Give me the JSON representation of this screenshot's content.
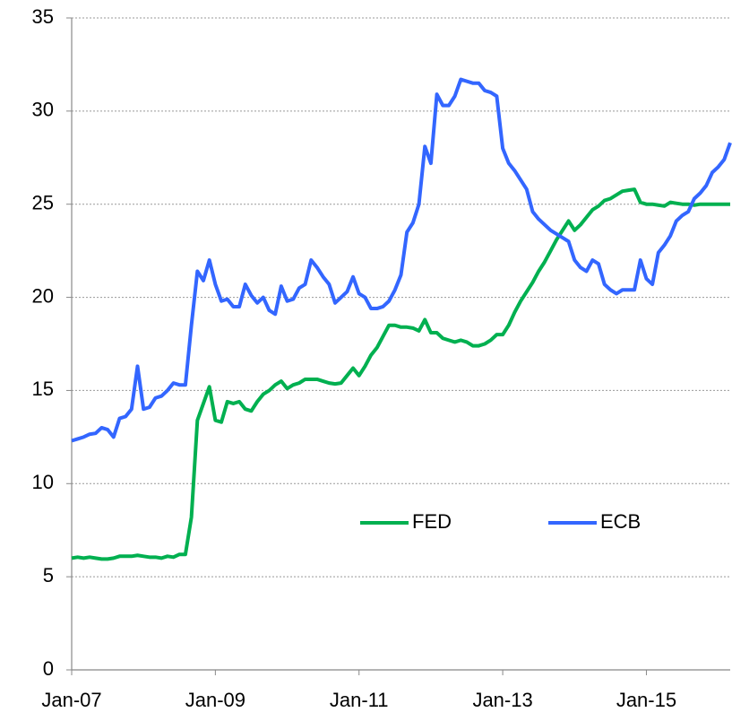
{
  "chart_data": {
    "type": "line",
    "categories": [
      "Jan-07",
      null,
      null,
      null,
      null,
      null,
      null,
      null,
      null,
      null,
      null,
      null,
      null,
      null,
      null,
      null,
      null,
      null,
      null,
      null,
      null,
      null,
      null,
      null,
      "Jan-09",
      null,
      null,
      null,
      null,
      null,
      null,
      null,
      null,
      null,
      null,
      null,
      null,
      null,
      null,
      null,
      null,
      null,
      null,
      null,
      null,
      null,
      null,
      null,
      "Jan-11",
      null,
      null,
      null,
      null,
      null,
      null,
      null,
      null,
      null,
      null,
      null,
      null,
      null,
      null,
      null,
      null,
      null,
      null,
      null,
      null,
      null,
      null,
      null,
      "Jan-13",
      null,
      null,
      null,
      null,
      null,
      null,
      null,
      null,
      null,
      null,
      null,
      null,
      null,
      null,
      null,
      null,
      null,
      null,
      null,
      null,
      null,
      null,
      null,
      "Jan-15",
      null,
      null,
      null,
      null,
      null,
      null,
      null,
      null,
      null,
      null,
      null,
      null,
      null,
      null
    ],
    "series": [
      {
        "name": "FED",
        "color": "#00b050",
        "values": [
          6.0,
          6.05,
          6.0,
          6.05,
          6.0,
          5.95,
          5.95,
          6.0,
          6.1,
          6.1,
          6.1,
          6.15,
          6.1,
          6.05,
          6.05,
          6.0,
          6.1,
          6.05,
          6.2,
          6.2,
          8.2,
          13.4,
          14.3,
          15.2,
          13.4,
          13.3,
          14.4,
          14.3,
          14.4,
          14.0,
          13.9,
          14.4,
          14.8,
          15.0,
          15.3,
          15.5,
          15.1,
          15.3,
          15.4,
          15.6,
          15.6,
          15.6,
          15.5,
          15.4,
          15.35,
          15.4,
          15.8,
          16.2,
          15.8,
          16.3,
          16.9,
          17.3,
          17.9,
          18.5,
          18.5,
          18.4,
          18.4,
          18.35,
          18.2,
          18.8,
          18.1,
          18.1,
          17.8,
          17.7,
          17.6,
          17.7,
          17.6,
          17.4,
          17.4,
          17.5,
          17.7,
          18.0,
          18.0,
          18.5,
          19.2,
          19.8,
          20.3,
          20.8,
          21.4,
          21.9,
          22.5,
          23.1,
          23.6,
          24.1,
          23.6,
          23.9,
          24.3,
          24.7,
          24.9,
          25.2,
          25.3,
          25.5,
          25.7,
          25.75,
          25.8,
          25.1,
          25.0,
          25.0,
          24.95,
          24.9,
          25.1,
          25.05,
          25.0,
          25.0,
          24.95,
          25.0,
          25.0,
          25.0,
          25.0,
          25.0,
          25.0
        ]
      },
      {
        "name": "ECB",
        "color": "#3366ff",
        "values": [
          12.3,
          12.4,
          12.5,
          12.65,
          12.7,
          13.0,
          12.9,
          12.5,
          13.5,
          13.6,
          14.0,
          16.3,
          14.0,
          14.1,
          14.6,
          14.7,
          15.0,
          15.4,
          15.3,
          15.3,
          18.5,
          21.4,
          20.9,
          22.0,
          20.7,
          19.8,
          19.9,
          19.5,
          19.5,
          20.7,
          20.1,
          19.7,
          20.0,
          19.3,
          19.1,
          20.6,
          19.8,
          19.9,
          20.5,
          20.7,
          22.0,
          21.6,
          21.1,
          20.7,
          19.7,
          20.0,
          20.3,
          21.1,
          20.2,
          20.0,
          19.4,
          19.4,
          19.5,
          19.8,
          20.4,
          21.2,
          23.5,
          24.0,
          25.0,
          28.1,
          27.2,
          30.9,
          30.3,
          30.3,
          30.8,
          31.7,
          31.6,
          31.5,
          31.5,
          31.1,
          31.0,
          30.8,
          28.0,
          27.2,
          26.8,
          26.3,
          25.8,
          24.6,
          24.2,
          23.9,
          23.6,
          23.4,
          23.2,
          23.0,
          22.0,
          21.6,
          21.4,
          22.0,
          21.8,
          20.7,
          20.4,
          20.2,
          20.4,
          20.4,
          20.4,
          22.0,
          21.0,
          20.7,
          22.4,
          22.8,
          23.3,
          24.1,
          24.4,
          24.6,
          25.3,
          25.6,
          26.0,
          26.7,
          27.0,
          27.4,
          28.3
        ]
      }
    ],
    "ylim": [
      0,
      35
    ],
    "yticks": [
      0,
      5,
      10,
      15,
      20,
      25,
      30,
      35
    ],
    "grid": true,
    "legend": "lower center"
  }
}
